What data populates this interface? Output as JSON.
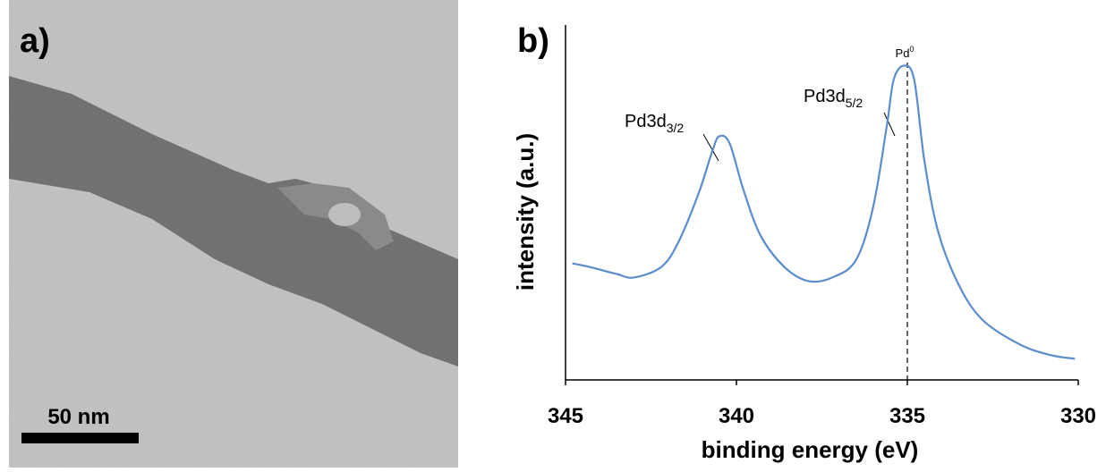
{
  "panel_a": {
    "label": "a)",
    "scale_bar": "50 nm"
  },
  "chart_data": {
    "type": "line",
    "panel_label": "b)",
    "xlabel": "binding energy (eV)",
    "ylabel": "intensity (a.u.)",
    "x": [
      344.8,
      344.3,
      343.5,
      343.0,
      342.2,
      341.7,
      341.1,
      340.7,
      340.5,
      340.2,
      339.8,
      339.3,
      338.6,
      337.9,
      337.2,
      336.5,
      336.0,
      335.6,
      335.4,
      335.1,
      334.8,
      334.5,
      334.1,
      333.5,
      332.8,
      331.7,
      330.8,
      330.1
    ],
    "values": [
      33,
      32,
      30,
      29,
      32,
      39,
      53,
      65,
      69,
      67,
      54,
      41,
      32,
      28,
      29,
      34,
      49,
      72,
      85,
      89,
      85,
      62,
      42,
      27,
      17,
      10,
      7,
      6
    ],
    "color": "#5b8ccb",
    "xlim": [
      345,
      330
    ],
    "xticks": [
      345,
      340,
      335,
      330
    ],
    "ylim": [
      0,
      100
    ],
    "annotations": [
      {
        "text": "Pd3d",
        "sub": "3/2"
      },
      {
        "text": "Pd3d",
        "sub": "5/2"
      },
      {
        "text": "Pd",
        "sup": "0",
        "x": 335
      }
    ]
  }
}
